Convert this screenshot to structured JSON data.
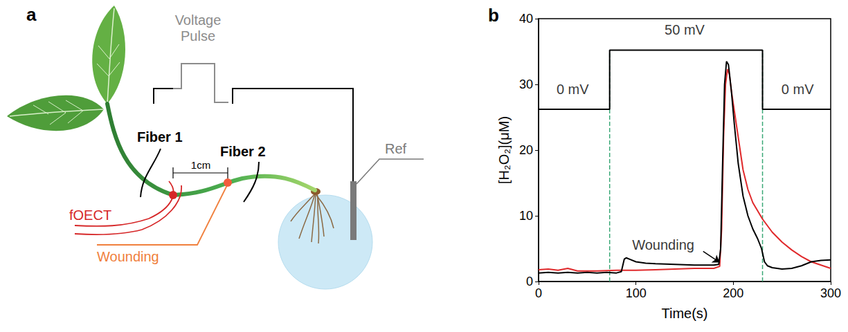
{
  "diagram": {
    "letter": "a",
    "voltage_pulse": "Voltage Pulse",
    "fiber_1": "Fiber 1",
    "fiber_2": "Fiber 2",
    "distance": "1cm",
    "sensor": "fOECT",
    "wound": "Wounding",
    "reference": "Ref"
  },
  "chart_data": {
    "type": "line",
    "panel_label": "b",
    "xlabel": "Time(s)",
    "ylabel": "[H₂O₂](μM)",
    "xlim": [
      0,
      300
    ],
    "xticks": [
      0,
      100,
      200,
      300
    ],
    "ylim": [
      0,
      40
    ],
    "yticks": [
      0,
      10,
      20,
      30,
      40
    ],
    "grid": false,
    "series": [
      {
        "color": "#e0292b",
        "x": [
          0,
          10,
          20,
          30,
          40,
          60,
          80,
          100,
          120,
          140,
          160,
          180,
          186,
          188,
          190,
          192,
          194,
          196,
          198,
          201,
          205,
          210,
          215,
          220,
          230,
          240,
          250,
          260,
          270,
          280,
          290,
          300
        ],
        "values": [
          1.8,
          1.9,
          1.7,
          2.0,
          1.6,
          1.6,
          1.7,
          1.7,
          1.8,
          1.9,
          2.0,
          2.0,
          2.3,
          8,
          22,
          30,
          32.3,
          31.5,
          29,
          26,
          22,
          17,
          14,
          12,
          9.5,
          7.5,
          6,
          4.8,
          3.8,
          3.0,
          2.5,
          2.0
        ]
      },
      {
        "color": "#000000",
        "x": [
          0,
          10,
          20,
          30,
          40,
          50,
          60,
          70,
          80,
          85,
          88,
          90,
          95,
          100,
          110,
          120,
          140,
          160,
          180,
          185,
          187,
          189,
          191,
          193,
          195,
          198,
          201,
          205,
          210,
          215,
          220,
          225,
          229,
          232,
          235,
          240,
          250,
          260,
          270,
          280,
          290,
          300
        ],
        "values": [
          1.3,
          1.4,
          1.3,
          1.4,
          1.3,
          1.4,
          1.3,
          1.4,
          1.3,
          1.5,
          3.4,
          3.6,
          3.3,
          3.0,
          2.8,
          2.7,
          2.6,
          2.5,
          2.5,
          2.6,
          5,
          18,
          30,
          33.5,
          33,
          29,
          24,
          18,
          13,
          10,
          8,
          6.5,
          5,
          3,
          2.4,
          2.1,
          1.9,
          2.0,
          2.4,
          3.0,
          3.2,
          3.3
        ]
      }
    ],
    "voltage_trace": {
      "color": "#000000",
      "x": [
        0,
        73,
        73,
        230,
        230,
        300
      ],
      "values": [
        26.2,
        26.2,
        35.2,
        35.2,
        26.2,
        26.2
      ]
    },
    "vertical_lines": {
      "x": [
        73,
        230
      ],
      "from": 0,
      "to": 35.2,
      "color": "#3aa876",
      "line_style": "dashed"
    },
    "annotations": [
      {
        "text": "50 mV",
        "x": 150,
        "y": 38.3
      },
      {
        "text": "0 mV",
        "x": 35,
        "y": 29.3
      },
      {
        "text": "0 mV",
        "x": 266,
        "y": 29.3
      },
      {
        "text": "Wounding",
        "x": 128,
        "y": 5.6,
        "arrow_from": [
          169,
          4.6
        ],
        "arrow_to": [
          186,
          2.9
        ]
      }
    ]
  }
}
